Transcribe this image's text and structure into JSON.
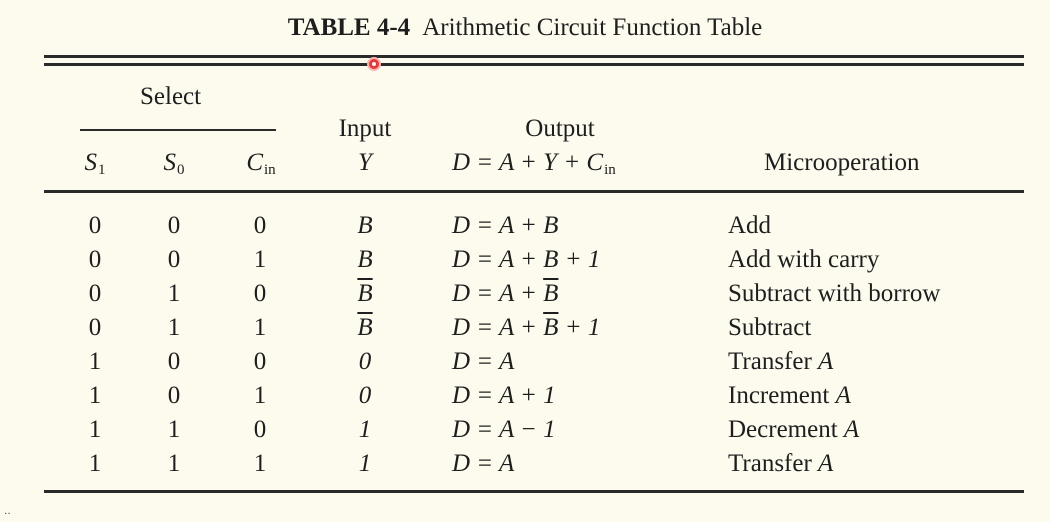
{
  "table": {
    "caption_number": "TABLE 4-4",
    "caption_title": "Arithmetic Circuit Function Table",
    "header": {
      "select": "Select",
      "input": "Input",
      "output": "Output",
      "s1": "S",
      "s1_sub": "1",
      "s0": "S",
      "s0_sub": "0",
      "cin": "C",
      "cin_sub": "in",
      "y": "Y",
      "formula": "D = A + Y + C",
      "formula_sub": "in",
      "microoperation": "Microoperation"
    },
    "rows": [
      {
        "s1": "0",
        "s0": "0",
        "cin": "0",
        "y": "B",
        "y_bar": false,
        "output_pre": "D = A + ",
        "output_bar": "",
        "output_post": "B",
        "micro_pre": "Add",
        "micro_var": ""
      },
      {
        "s1": "0",
        "s0": "0",
        "cin": "1",
        "y": "B",
        "y_bar": false,
        "output_pre": "D = A + ",
        "output_bar": "",
        "output_post": "B + 1",
        "micro_pre": "Add with carry",
        "micro_var": ""
      },
      {
        "s1": "0",
        "s0": "1",
        "cin": "0",
        "y": "B",
        "y_bar": true,
        "output_pre": "D = A + ",
        "output_bar": "B",
        "output_post": "",
        "micro_pre": "Subtract with borrow",
        "micro_var": ""
      },
      {
        "s1": "0",
        "s0": "1",
        "cin": "1",
        "y": "B",
        "y_bar": true,
        "output_pre": "D = A + ",
        "output_bar": "B",
        "output_post": " + 1",
        "micro_pre": "Subtract",
        "micro_var": ""
      },
      {
        "s1": "1",
        "s0": "0",
        "cin": "0",
        "y": "0",
        "y_bar": false,
        "output_pre": "D = A",
        "output_bar": "",
        "output_post": "",
        "micro_pre": "Transfer ",
        "micro_var": "A"
      },
      {
        "s1": "1",
        "s0": "0",
        "cin": "1",
        "y": "0",
        "y_bar": false,
        "output_pre": "D = A + 1",
        "output_bar": "",
        "output_post": "",
        "micro_pre": "Increment ",
        "micro_var": "A"
      },
      {
        "s1": "1",
        "s0": "1",
        "cin": "0",
        "y": "1",
        "y_bar": false,
        "output_pre": "D = A − 1",
        "output_bar": "",
        "output_post": "",
        "micro_pre": "Decrement ",
        "micro_var": "A"
      },
      {
        "s1": "1",
        "s0": "1",
        "cin": "1",
        "y": "1",
        "y_bar": false,
        "output_pre": "D = A",
        "output_bar": "",
        "output_post": "",
        "micro_pre": "Transfer ",
        "micro_var": "A"
      }
    ]
  },
  "colors": {
    "background": "#fdfbee",
    "ink": "#1e1e1e",
    "cursor": "#e23a3a"
  }
}
